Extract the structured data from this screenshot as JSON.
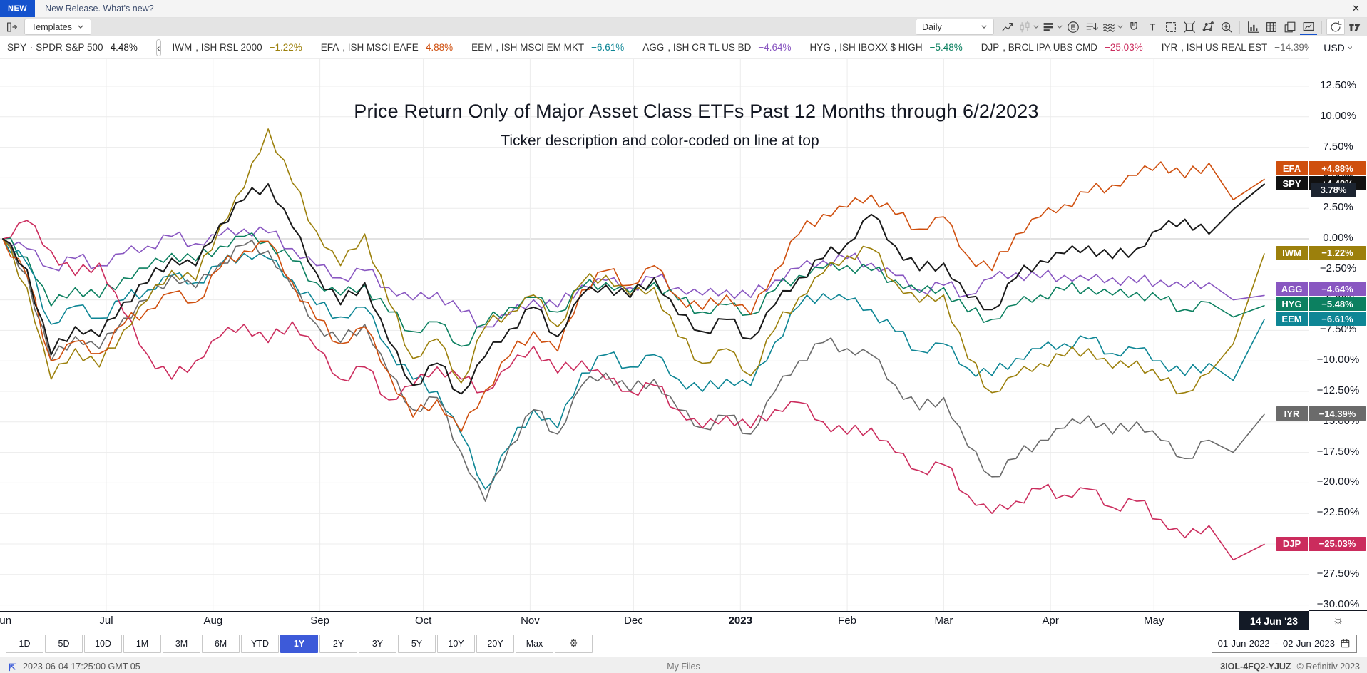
{
  "banner": {
    "badge": "NEW",
    "text": "New Release. What's new?",
    "close": "✕"
  },
  "toolbar": {
    "templates_label": "Templates",
    "interval_value": "Daily",
    "right_icons": [
      {
        "name": "line-style-icon"
      },
      {
        "name": "candlestick-icon",
        "disabled": true,
        "chevron": true
      },
      {
        "name": "bar-style-icon",
        "chevron": true
      },
      {
        "name": "events-icon"
      },
      {
        "name": "indicator-list-icon"
      },
      {
        "name": "wave-pattern-icon",
        "chevron": true
      },
      {
        "name": "magnet-icon"
      },
      {
        "name": "text-tool-icon"
      },
      {
        "name": "selection-tool-icon"
      },
      {
        "name": "fit-content-icon"
      },
      {
        "name": "polygon-tool-icon"
      },
      {
        "name": "zoom-in-icon"
      },
      {
        "name": "volume-chart-icon",
        "sep_before": true
      },
      {
        "name": "table-view-icon"
      },
      {
        "name": "snapshot-icon"
      },
      {
        "name": "chart-settings-icon",
        "active": true
      },
      {
        "name": "refresh-icon",
        "boxed": true,
        "sep_before": true
      },
      {
        "name": "tradingview-logo-icon"
      }
    ]
  },
  "legend": {
    "scroll_button": "‹",
    "items": [
      {
        "ticker": "SPY",
        "sep": "·",
        "desc": "SPDR S&P 500",
        "value": "4.48%",
        "color": "#1a1a1a"
      },
      {
        "ticker": "IWM",
        "sep": ",",
        "desc": "ISH RSL 2000",
        "value": "−1.22%",
        "color": "#9c800c"
      },
      {
        "ticker": "EFA",
        "sep": ",",
        "desc": "ISH MSCI EAFE",
        "value": "4.88%",
        "color": "#cf4f0e"
      },
      {
        "ticker": "EEM",
        "sep": ",",
        "desc": "ISH MSCI EM MKT",
        "value": "−6.61%",
        "color": "#0e8695"
      },
      {
        "ticker": "AGG",
        "sep": ",",
        "desc": "ISH CR TL US BD",
        "value": "−4.64%",
        "color": "#8957c1"
      },
      {
        "ticker": "HYG",
        "sep": ",",
        "desc": "ISH IBOXX $ HIGH",
        "value": "−5.48%",
        "color": "#0c8060"
      },
      {
        "ticker": "DJP",
        "sep": ",",
        "desc": "BRCL IPA UBS CMD",
        "value": "−25.03%",
        "color": "#cb2c5d"
      },
      {
        "ticker": "IYR",
        "sep": ",",
        "desc": "ISH US REAL EST",
        "value": "−14.39%",
        "color": "#6b6b6b"
      }
    ]
  },
  "currency": {
    "label": "USD"
  },
  "chart": {
    "title": "Price Return Only of Major Asset Class ETFs Past 12 Months through 6/2/2023",
    "subtitle": "Ticker description and color-coded on line at top",
    "tooltip_value": "3.78%",
    "axis_badges": [
      {
        "ticker": "EFA",
        "label": "+4.88%",
        "value": 4.88,
        "color": "#cf4f0e"
      },
      {
        "ticker": "SPY",
        "label": "+4.48%",
        "value": 4.48,
        "color": "#111111"
      },
      {
        "ticker": "IWM",
        "label": "−1.22%",
        "value": -1.22,
        "color": "#9c800c"
      },
      {
        "ticker": "AGG",
        "label": "−4.64%",
        "value": -4.64,
        "color": "#8957c1"
      },
      {
        "ticker": "HYG",
        "label": "−5.48%",
        "value": -5.48,
        "color": "#0c8060"
      },
      {
        "ticker": "EEM",
        "label": "−6.61%",
        "value": -6.61,
        "color": "#0e8695"
      },
      {
        "ticker": "IYR",
        "label": "−14.39%",
        "value": -14.39,
        "color": "#6b6b6b"
      },
      {
        "ticker": "DJP",
        "label": "−25.03%",
        "value": -25.03,
        "color": "#cb2c5d"
      }
    ]
  },
  "chart_data": {
    "type": "line",
    "title": "Price Return Only of Major Asset Class ETFs Past 12 Months through 6/2/2023",
    "subtitle": "Ticker description and color-coded on line at top",
    "x_unit": "days since 01-Jun-2022",
    "point_interval_days": 7,
    "last_point_day": 366,
    "y_axis": {
      "min": -30,
      "max": 12.5,
      "step": 2.5,
      "unit": "%",
      "grid": true
    },
    "last_date_label": "14 Jun '23",
    "x_ticks": [
      {
        "label": "Jun",
        "day": 0
      },
      {
        "label": "Jul",
        "day": 30
      },
      {
        "label": "Aug",
        "day": 61
      },
      {
        "label": "Sep",
        "day": 92
      },
      {
        "label": "Oct",
        "day": 122
      },
      {
        "label": "Nov",
        "day": 153
      },
      {
        "label": "Dec",
        "day": 183
      },
      {
        "label": "2023",
        "day": 214,
        "bold": true
      },
      {
        "label": "Feb",
        "day": 245
      },
      {
        "label": "Mar",
        "day": 273
      },
      {
        "label": "Apr",
        "day": 304
      },
      {
        "label": "May",
        "day": 334
      }
    ],
    "series": [
      {
        "ticker": "SPY",
        "name": "SPDR S&P 500",
        "color": "#1a1a1a",
        "end_label": "+4.48%",
        "values": [
          0,
          -2.5,
          -9.5,
          -7.2,
          -8,
          -5.2,
          -3.6,
          -1.6,
          -2.2,
          1.2,
          3.2,
          4.5,
          1,
          -2.8,
          -5.4,
          -3.6,
          -8.4,
          -12,
          -10.2,
          -12.7,
          -9.6,
          -7.4,
          -5.6,
          -8,
          -4.6,
          -3.8,
          -4.8,
          -3.2,
          -6.2,
          -7.6,
          -6.6,
          -8.2,
          -5.4,
          -3.2,
          -1.6,
          -0.4,
          2,
          -0.6,
          -2.6,
          -2,
          -4.8,
          -5.8,
          -3.2,
          -1.8,
          -1.2,
          -0.6,
          -1.6,
          -0.8,
          0.8,
          1.6,
          0.4,
          2.4,
          4.48
        ]
      },
      {
        "ticker": "EFA",
        "name": "ISH MSCI EAFE",
        "color": "#cf4f0e",
        "end_label": "+4.88%",
        "values": [
          0,
          -3,
          -10,
          -8.4,
          -9.4,
          -7,
          -5.8,
          -4.4,
          -5.2,
          -2.4,
          -1,
          -0.2,
          -3.6,
          -6.6,
          -8.6,
          -7.2,
          -11,
          -14.6,
          -13.2,
          -15.8,
          -12.4,
          -9.6,
          -7.6,
          -9.2,
          -4.2,
          -2.6,
          -3.8,
          -2.2,
          -4.8,
          -5.8,
          -4.6,
          -6.2,
          -2.6,
          0.4,
          2,
          2.6,
          3.6,
          2,
          0.8,
          1.8,
          -1.4,
          -2.6,
          0.4,
          1.8,
          2.8,
          3.8,
          4.4,
          5.2,
          6.3,
          5,
          6.2,
          3.2,
          4.88
        ]
      },
      {
        "ticker": "IWM",
        "name": "ISH RSL 2000",
        "color": "#9c800c",
        "end_label": "−1.22%",
        "values": [
          0,
          -4,
          -11.5,
          -9,
          -10.5,
          -7.5,
          -5,
          -2.6,
          -3.4,
          1,
          4.2,
          9,
          4.6,
          0.6,
          -2.2,
          0.4,
          -5.2,
          -9.8,
          -8.2,
          -11.8,
          -7.2,
          -6,
          -4.6,
          -7.2,
          -3.6,
          -3,
          -4.6,
          -4,
          -8,
          -10.2,
          -9,
          -11.2,
          -7.4,
          -4.8,
          -2.8,
          -1.4,
          -0.8,
          -3.6,
          -5.2,
          -4.6,
          -9.8,
          -12.6,
          -11.2,
          -10.2,
          -9.6,
          -9,
          -10.6,
          -10,
          -11.6,
          -12.6,
          -11,
          -8.6,
          -1.22
        ]
      },
      {
        "ticker": "AGG",
        "name": "ISH CR TL US BD",
        "color": "#8957c1",
        "end_label": "−4.64%",
        "values": [
          0,
          -0.8,
          -2.4,
          -1.6,
          -2.2,
          -1.2,
          -0.6,
          0.2,
          -0.4,
          0.3,
          0.8,
          0.5,
          -0.8,
          -2.2,
          -3.2,
          -2.6,
          -4,
          -5,
          -4.4,
          -6,
          -7.2,
          -6.2,
          -5,
          -5.6,
          -3.8,
          -3.4,
          -4,
          -3.2,
          -4,
          -4.6,
          -4.2,
          -4.8,
          -3.4,
          -2.4,
          -1.8,
          -1.6,
          -2,
          -3,
          -4.2,
          -3.8,
          -4.6,
          -3.2,
          -2.8,
          -3.2,
          -3,
          -3.4,
          -3.2,
          -3.6,
          -3.4,
          -4,
          -3.6,
          -5,
          -4.64
        ]
      },
      {
        "ticker": "HYG",
        "name": "ISH IBOXX $ HIGH",
        "color": "#0c8060",
        "end_label": "−5.48%",
        "values": [
          0,
          -1.5,
          -5.5,
          -4,
          -4.8,
          -3.2,
          -2.4,
          -1.2,
          -1.8,
          -0.6,
          0.2,
          -0.2,
          -1.8,
          -3.6,
          -4.6,
          -3.8,
          -6,
          -7.6,
          -6.8,
          -8.8,
          -7,
          -5.6,
          -4.8,
          -6,
          -4,
          -3.6,
          -4.4,
          -3.6,
          -5,
          -6,
          -5.4,
          -6.2,
          -4.2,
          -3,
          -2.4,
          -2.2,
          -2.6,
          -3.4,
          -4.4,
          -4,
          -6,
          -6.6,
          -5.4,
          -4.6,
          -4.2,
          -4,
          -4.6,
          -4.4,
          -5,
          -5.8,
          -5.2,
          -6.4,
          -5.48
        ]
      },
      {
        "ticker": "EEM",
        "name": "ISH MSCI EM MKT",
        "color": "#0e8695",
        "end_label": "−6.61%",
        "values": [
          0,
          -2,
          -7,
          -5.5,
          -6.5,
          -5,
          -4.2,
          -3,
          -3.6,
          -2.2,
          -1.2,
          -1.6,
          -3.4,
          -5.4,
          -6.4,
          -5.6,
          -9,
          -11.5,
          -12.5,
          -16,
          -20.5,
          -17,
          -14,
          -15.5,
          -11,
          -9.5,
          -10.5,
          -9.5,
          -11.5,
          -12.5,
          -11.5,
          -12,
          -8.5,
          -5.5,
          -4.5,
          -5,
          -5.8,
          -7.6,
          -9.2,
          -8.6,
          -10.6,
          -11.2,
          -9.8,
          -9,
          -8.6,
          -8.2,
          -9.4,
          -9,
          -10,
          -11.2,
          -10.2,
          -11.6,
          -6.61
        ]
      },
      {
        "ticker": "IYR",
        "name": "ISH US REAL EST",
        "color": "#6b6b6b",
        "end_label": "−14.39%",
        "values": [
          0,
          -3,
          -10,
          -8,
          -9,
          -6.5,
          -5,
          -3,
          -4,
          -2,
          -0.5,
          -1,
          -4,
          -7,
          -8.5,
          -7,
          -11,
          -14,
          -13,
          -17.5,
          -21.5,
          -17,
          -14,
          -16,
          -12,
          -11,
          -12.5,
          -11.5,
          -14,
          -15.5,
          -14.5,
          -16,
          -12.5,
          -10,
          -8.5,
          -9,
          -9.5,
          -12,
          -14,
          -13,
          -17,
          -19.5,
          -18,
          -16.5,
          -15.5,
          -14.5,
          -16,
          -15,
          -16.5,
          -18,
          -16.5,
          -17.5,
          -14.39
        ]
      },
      {
        "ticker": "DJP",
        "name": "BRCL IPA UBS CMD",
        "color": "#cb2c5d",
        "end_label": "−25.03%",
        "values": [
          0,
          1.5,
          -1,
          -3,
          -2,
          -6,
          -9.5,
          -11.5,
          -10,
          -8,
          -7,
          -8.5,
          -6.8,
          -9,
          -11.5,
          -10.5,
          -13.2,
          -12,
          -10.5,
          -11.5,
          -12.5,
          -10.5,
          -8.8,
          -11,
          -10,
          -11.5,
          -12.5,
          -12,
          -14,
          -15.5,
          -14.5,
          -15.5,
          -14,
          -13.4,
          -15,
          -16,
          -15.5,
          -17.5,
          -19,
          -18.5,
          -21,
          -22.5,
          -21.5,
          -20.5,
          -21,
          -20.5,
          -22,
          -21.5,
          -23,
          -24.5,
          -23.5,
          -26.3,
          -25.03
        ]
      }
    ],
    "draw_order": [
      "AGG",
      "HYG",
      "EEM",
      "IYR",
      "DJP",
      "IWM",
      "EFA",
      "SPY"
    ]
  },
  "range_toolbar": {
    "buttons": [
      "1D",
      "5D",
      "10D",
      "1M",
      "3M",
      "6M",
      "YTD",
      "1Y",
      "2Y",
      "3Y",
      "5Y",
      "10Y",
      "20Y",
      "Max"
    ],
    "active": "1Y",
    "date_from": "01-Jun-2022",
    "date_sep": "-",
    "date_to": "02-Jun-2023"
  },
  "status_bar": {
    "timestamp": "2023-06-04 17:25:00 GMT-05",
    "center": "My Files",
    "code": "3IOL-4FQ2-YJUZ",
    "copyright": "© Refinitiv 2023"
  }
}
